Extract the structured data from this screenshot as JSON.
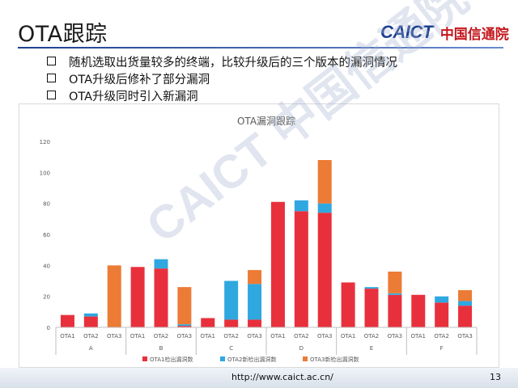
{
  "header": {
    "title": "OTA跟踪",
    "logo_mark": "CAICT",
    "logo_org": "中国信通院"
  },
  "bullets": [
    "随机选取出货量较多的终端，比较升级后的三个版本的漏洞情况",
    "OTA升级后修补了部分漏洞",
    "OTA升级同时引入新漏洞"
  ],
  "watermark": "CAICT 中国信通院",
  "footer": {
    "url": "http://www.caict.ac.cn/",
    "page_number": "13"
  },
  "colors": {
    "ota1": "#e8303c",
    "ota2": "#2fa8e0",
    "ota3": "#ec7b35"
  },
  "chart_data": {
    "type": "bar",
    "stacked": true,
    "title": "OTA漏洞跟踪",
    "xlabel": "",
    "ylabel": "",
    "ylim": [
      0,
      120
    ],
    "yticks": [
      0,
      20,
      40,
      60,
      80,
      100,
      120
    ],
    "grid": false,
    "legend_position": "bottom",
    "groups": [
      "A",
      "B",
      "C",
      "D",
      "E",
      "F"
    ],
    "categories": [
      "OTA1",
      "OTA2",
      "OTA3"
    ],
    "series": [
      {
        "name": "OTA1检出漏洞数",
        "color_key": "ota1",
        "values": [
          [
            8,
            7,
            0
          ],
          [
            39,
            38,
            1
          ],
          [
            6,
            5,
            5
          ],
          [
            81,
            75,
            74
          ],
          [
            29,
            25,
            21
          ],
          [
            21,
            16,
            14
          ]
        ]
      },
      {
        "name": "OTA2新检出漏洞数",
        "color_key": "ota2",
        "values": [
          [
            0,
            2,
            0
          ],
          [
            0,
            6,
            1
          ],
          [
            0,
            25,
            23
          ],
          [
            0,
            7,
            6
          ],
          [
            0,
            1,
            1
          ],
          [
            0,
            4,
            3
          ]
        ]
      },
      {
        "name": "OTA3新检出漏洞数",
        "color_key": "ota3",
        "values": [
          [
            0,
            0,
            40
          ],
          [
            0,
            0,
            24
          ],
          [
            0,
            0,
            9
          ],
          [
            0,
            0,
            28
          ],
          [
            0,
            0,
            14
          ],
          [
            0,
            0,
            7
          ]
        ]
      }
    ]
  }
}
